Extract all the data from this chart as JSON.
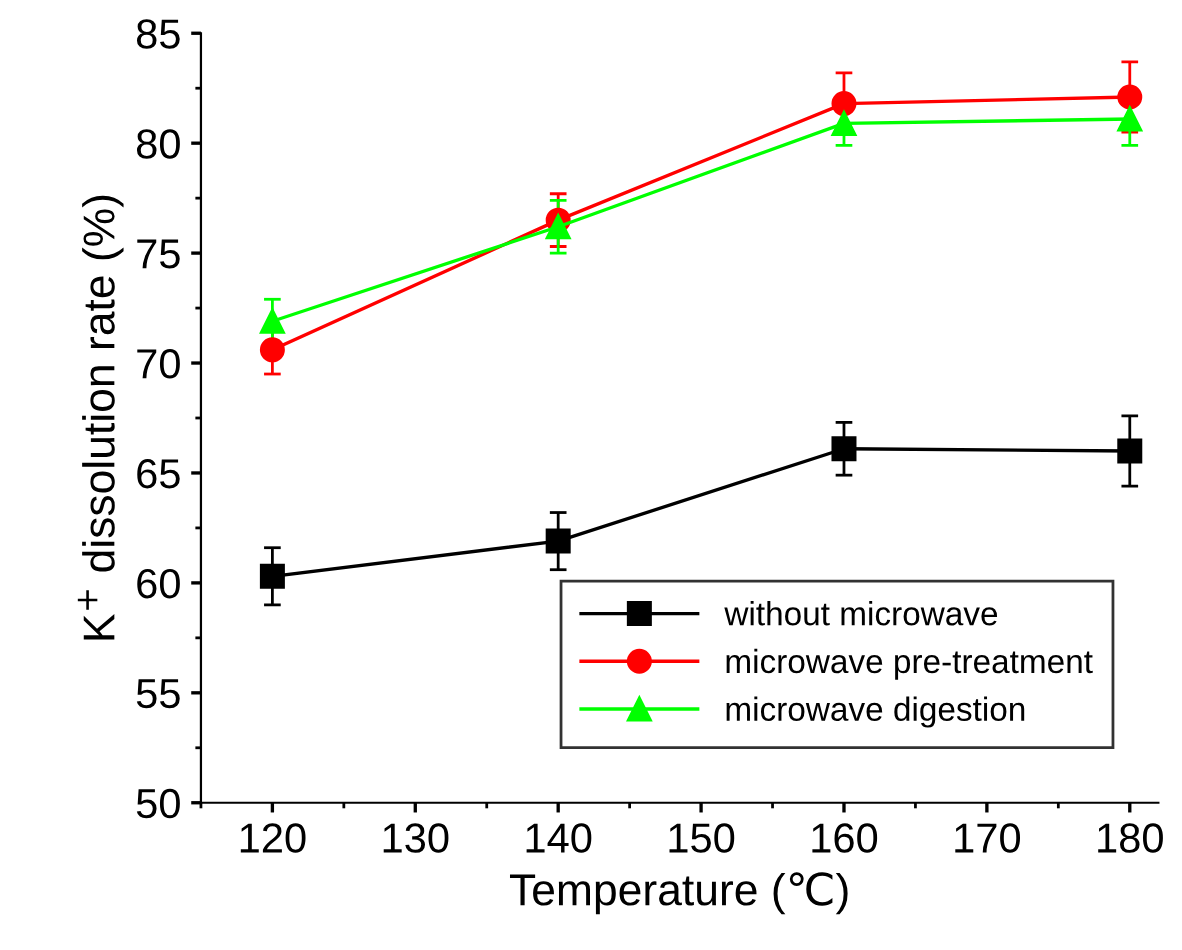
{
  "chart_data": {
    "type": "line",
    "xlabel": "Temperature (℃)",
    "ylabel": "K$^{+}$ dissolution rate (%)",
    "x": [
      120,
      140,
      160,
      180
    ],
    "xlim": [
      115,
      182
    ],
    "ylim": [
      50,
      85
    ],
    "xticks": [
      120,
      130,
      140,
      150,
      160,
      170,
      180
    ],
    "yticks": [
      50,
      55,
      60,
      65,
      70,
      75,
      80,
      85
    ],
    "legend": "bottom right",
    "grid": false,
    "line_style": "solid",
    "series": [
      {
        "name": "without microwave",
        "color": "#000000",
        "marker": "square",
        "values": [
          60.3,
          61.9,
          66.1,
          66.0
        ],
        "errors": [
          1.3,
          1.3,
          1.2,
          1.6
        ]
      },
      {
        "name": "microwave pre-treatment",
        "color": "#ff0000",
        "marker": "circle",
        "values": [
          70.6,
          76.5,
          81.8,
          82.1
        ],
        "errors": [
          1.1,
          1.2,
          1.4,
          1.6
        ]
      },
      {
        "name": "microwave digestion",
        "color": "#00ff00",
        "marker": "triangle",
        "values": [
          71.9,
          76.2,
          80.9,
          81.1
        ],
        "errors": [
          1.0,
          1.2,
          1.0,
          1.2
        ]
      }
    ]
  }
}
